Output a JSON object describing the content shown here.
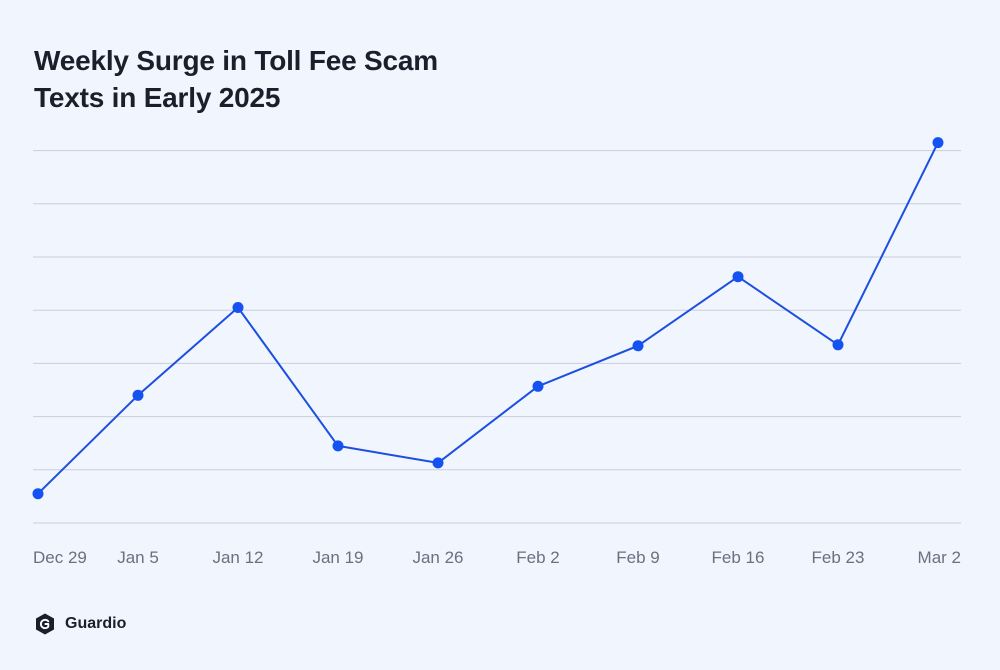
{
  "header": {
    "title_line1": "Weekly Surge in Toll Fee Scam",
    "title_line2": "Texts in Early 2025"
  },
  "brand": {
    "name": "Guardio",
    "icon": "guardio-shield-icon"
  },
  "colors": {
    "background": "#f1f5fe",
    "line": "#1b4fe0",
    "marker": "#1552f2",
    "grid": "#c9ceda",
    "axis_text": "#6b7080",
    "title": "#1a1f2b"
  },
  "chart_data": {
    "type": "line",
    "title": "Weekly Surge in Toll Fee Scam Texts in Early 2025",
    "xlabel": "",
    "ylabel": "",
    "categories": [
      "Dec 29",
      "Jan 5",
      "Jan 12",
      "Jan 19",
      "Jan 26",
      "Feb 2",
      "Feb 9",
      "Feb 16",
      "Feb 23",
      "Mar 2"
    ],
    "series": [
      {
        "values": [
          0.55,
          2.4,
          4.05,
          1.45,
          1.13,
          2.57,
          3.33,
          4.63,
          3.35,
          7.15
        ]
      }
    ],
    "ylim": [
      0,
      7
    ],
    "y_axis_labels_shown": false,
    "grid": true,
    "legend": "none"
  }
}
